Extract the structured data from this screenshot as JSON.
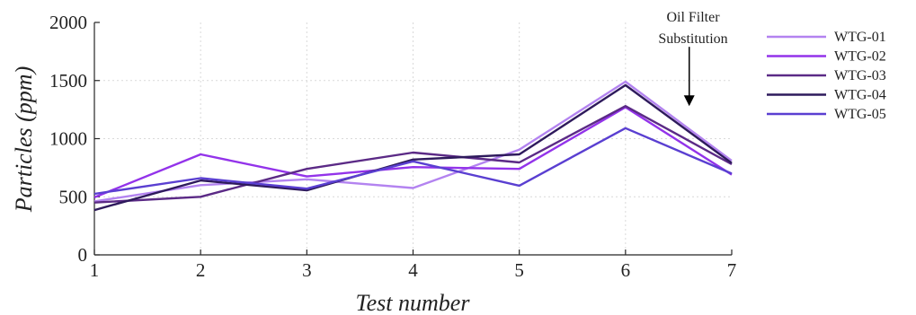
{
  "chart_data": {
    "type": "line",
    "xlabel": "Test number",
    "ylabel": "Particles (ppm)",
    "x": [
      1,
      2,
      3,
      4,
      5,
      6,
      7
    ],
    "xlim": [
      1,
      7
    ],
    "ylim": [
      0,
      2000
    ],
    "yticks": [
      0,
      500,
      1000,
      1500,
      2000
    ],
    "xticks": [
      1,
      2,
      3,
      4,
      5,
      6,
      7
    ],
    "grid": true,
    "legend_position": "right",
    "series": [
      {
        "name": "WTG-01",
        "color": "#b383f0",
        "values": [
          460,
          600,
          650,
          575,
          905,
          1490,
          810
        ]
      },
      {
        "name": "WTG-02",
        "color": "#9333ea",
        "values": [
          495,
          865,
          675,
          755,
          740,
          1270,
          690
        ]
      },
      {
        "name": "WTG-03",
        "color": "#5b2a86",
        "values": [
          450,
          500,
          740,
          880,
          795,
          1280,
          780
        ]
      },
      {
        "name": "WTG-04",
        "color": "#2e1a5c",
        "values": [
          385,
          640,
          555,
          820,
          865,
          1460,
          790
        ]
      },
      {
        "name": "WTG-05",
        "color": "#5a3fd1",
        "values": [
          525,
          660,
          570,
          805,
          595,
          1090,
          700
        ]
      }
    ],
    "annotation": {
      "line1": "Oil Filter",
      "line2": "Substitution",
      "x": 6.6,
      "y_from": 1790,
      "y_to": 1280
    }
  }
}
